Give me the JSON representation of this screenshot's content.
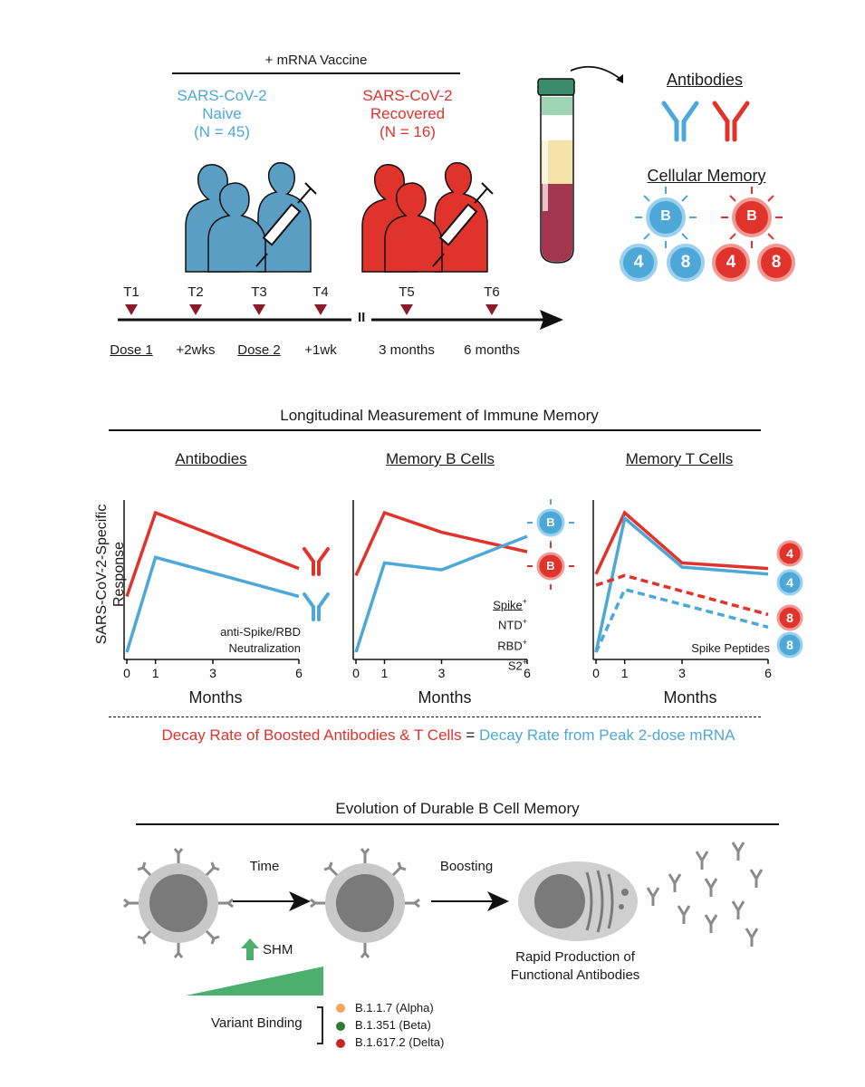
{
  "top": {
    "vaccine_label": "+ mRNA Vaccine",
    "naive": {
      "line1": "SARS-CoV-2",
      "line2": "Naive",
      "line3": "(N = 45)"
    },
    "recovered": {
      "line1": "SARS-CoV-2",
      "line2": "Recovered",
      "line3": "(N = 16)"
    },
    "antibodies_label": "Antibodies",
    "cellular_memory_label": "Cellular Memory",
    "cell_letters": {
      "b": "B",
      "four": "4",
      "eight": "8"
    }
  },
  "timeline": {
    "points": [
      {
        "id": "T1",
        "label": "Dose 1",
        "underline": true
      },
      {
        "id": "T2",
        "label": "+2wks",
        "underline": false
      },
      {
        "id": "T3",
        "label": "Dose 2",
        "underline": true
      },
      {
        "id": "T4",
        "label": "+1wk",
        "underline": false
      },
      {
        "id": "T5",
        "label": "3 months",
        "underline": false
      },
      {
        "id": "T6",
        "label": "6 months",
        "underline": false
      }
    ],
    "break_mark": "II"
  },
  "middle": {
    "title": "Longitudinal Measurement of Immune Memory",
    "y_axis_label_line1": "SARS-CoV-2-Specific",
    "y_axis_label_line2": "Response",
    "x_axis_label": "Months",
    "panel_titles": [
      "Antibodies",
      "Memory B Cells",
      "Memory T Cells"
    ],
    "antibody_annotation": [
      "anti-Spike/RBD",
      "Neutralization"
    ],
    "bcell_annotation": [
      "Spike",
      "NTD",
      "RBD",
      "S2"
    ],
    "bcell_superscripts": [
      "+",
      "+",
      "+",
      "+"
    ],
    "tcell_annotation": "Spike Peptides",
    "decay_left": "Decay Rate of Boosted Antibodies & T Cells",
    "decay_equals": "=",
    "decay_right": "Decay Rate from Peak 2-dose mRNA"
  },
  "chart_data": [
    {
      "type": "line",
      "title": "Antibodies",
      "xlabel": "Months",
      "ylabel": "SARS-CoV-2-Specific Response",
      "x_ticks": [
        0,
        1,
        3,
        6
      ],
      "series": [
        {
          "color": "#e0332c",
          "x": [
            0,
            1,
            6
          ],
          "y": [
            0.4,
            1.0,
            0.6
          ]
        },
        {
          "color": "#4da8d8",
          "x": [
            0,
            1,
            6
          ],
          "y": [
            0.0,
            0.68,
            0.4
          ]
        }
      ]
    },
    {
      "type": "line",
      "title": "Memory B Cells",
      "xlabel": "Months",
      "x_ticks": [
        0,
        1,
        3,
        6
      ],
      "series": [
        {
          "color": "#e0332c",
          "x": [
            0,
            1,
            3,
            6
          ],
          "y": [
            0.55,
            1.0,
            0.86,
            0.72
          ]
        },
        {
          "color": "#4da8d8",
          "x": [
            0,
            1,
            3,
            6
          ],
          "y": [
            0.0,
            0.64,
            0.59,
            0.83
          ]
        }
      ]
    },
    {
      "type": "line",
      "title": "Memory T Cells",
      "xlabel": "Months",
      "x_ticks": [
        0,
        1,
        3,
        6
      ],
      "series": [
        {
          "color": "#e0332c",
          "dash": false,
          "x": [
            0,
            1,
            3,
            6
          ],
          "y": [
            0.56,
            1.0,
            0.64,
            0.6
          ]
        },
        {
          "color": "#4da8d8",
          "dash": false,
          "x": [
            0,
            1,
            3,
            6
          ],
          "y": [
            0.0,
            0.96,
            0.61,
            0.56
          ]
        },
        {
          "color": "#e0332c",
          "dash": true,
          "x": [
            0,
            1,
            6
          ],
          "y": [
            0.48,
            0.55,
            0.27
          ]
        },
        {
          "color": "#4da8d8",
          "dash": true,
          "x": [
            0,
            1,
            6
          ],
          "y": [
            0.0,
            0.45,
            0.18
          ]
        }
      ]
    }
  ],
  "bottom": {
    "title": "Evolution of Durable B Cell Memory",
    "time_label": "Time",
    "boosting_label": "Boosting",
    "shm_label": "SHM",
    "variant_binding_label": "Variant Binding",
    "variants": [
      {
        "label": "B.1.1.7 (Alpha)",
        "color": "#f2a65a"
      },
      {
        "label": "B.1.351 (Beta)",
        "color": "#2e7d32"
      },
      {
        "label": "B.1.617.2 (Delta)",
        "color": "#c62828"
      }
    ],
    "rapid_line1": "Rapid Production of",
    "rapid_line2": "Functional Antibodies"
  },
  "colors": {
    "naive": "#4da8d8",
    "recovered": "#e0332c",
    "timeline_marker": "#8b1a2b",
    "green": "#4caf6e"
  }
}
